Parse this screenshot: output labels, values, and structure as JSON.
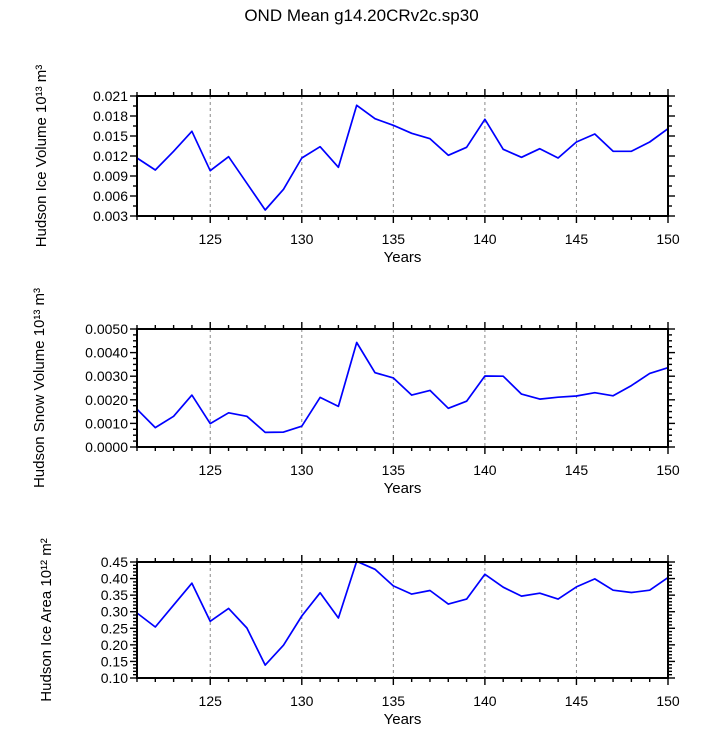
{
  "title": "OND Mean g14.20CRv2c.sp30",
  "colors": {
    "line": "#0000ff",
    "grid": "#8a8a8a",
    "axis": "#000000",
    "text": "#000000"
  },
  "x_axis": {
    "label": "Years",
    "tick_values": [
      125,
      130,
      135,
      140,
      145,
      150
    ],
    "tick_labels": [
      "125",
      "130",
      "135",
      "140",
      "145",
      "150"
    ],
    "minor_step": 1,
    "grid_values": [
      125,
      130,
      135,
      140,
      145
    ]
  },
  "chart_data": [
    {
      "type": "line",
      "id": "hudson-ice-volume",
      "ylabel": "Hudson Ice Volume 10¹³ m³",
      "xlabel": "Years",
      "xlim": [
        121,
        150
      ],
      "ylim": [
        0.003,
        0.021
      ],
      "ytick_values": [
        0.003,
        0.006,
        0.009,
        0.012,
        0.015,
        0.018,
        0.021
      ],
      "ytick_labels": [
        "0.003",
        "0.006",
        "0.009",
        "0.012",
        "0.015",
        "0.018",
        "0.021"
      ],
      "y_minor_step": 0.0015,
      "grid": "vertical-dashed",
      "x": [
        121,
        122,
        123,
        124,
        125,
        126,
        127,
        128,
        129,
        130,
        131,
        132,
        133,
        134,
        135,
        136,
        137,
        138,
        139,
        140,
        141,
        142,
        143,
        144,
        145,
        146,
        147,
        148,
        149,
        150
      ],
      "values": [
        0.0117,
        0.0099,
        0.0127,
        0.0157,
        0.0098,
        0.0119,
        0.0079,
        0.0039,
        0.007,
        0.0117,
        0.0134,
        0.0103,
        0.0196,
        0.0176,
        0.0166,
        0.0154,
        0.0146,
        0.0121,
        0.0133,
        0.0175,
        0.013,
        0.0118,
        0.0131,
        0.0117,
        0.0141,
        0.0153,
        0.0127,
        0.0127,
        0.0141,
        0.0161
      ]
    },
    {
      "type": "line",
      "id": "hudson-snow-volume",
      "ylabel": "Hudson Snow Volume 10¹³ m³",
      "xlabel": "Years",
      "xlim": [
        121,
        150
      ],
      "ylim": [
        0.0,
        0.005
      ],
      "ytick_values": [
        0.0,
        0.001,
        0.002,
        0.003,
        0.004,
        0.005
      ],
      "ytick_labels": [
        "0.0000",
        "0.0010",
        "0.0020",
        "0.0030",
        "0.0040",
        "0.0050"
      ],
      "y_minor_step": 0.00025,
      "grid": "vertical-dashed",
      "x": [
        121,
        122,
        123,
        124,
        125,
        126,
        127,
        128,
        129,
        130,
        131,
        132,
        133,
        134,
        135,
        136,
        137,
        138,
        139,
        140,
        141,
        142,
        143,
        144,
        145,
        146,
        147,
        148,
        149,
        150
      ],
      "values": [
        0.0016,
        0.00082,
        0.0013,
        0.0022,
        0.00099,
        0.00145,
        0.0013,
        0.00062,
        0.00063,
        0.00088,
        0.0021,
        0.00172,
        0.00443,
        0.00315,
        0.00293,
        0.0022,
        0.0024,
        0.00164,
        0.00194,
        0.00301,
        0.003,
        0.00224,
        0.00203,
        0.00211,
        0.00216,
        0.0023,
        0.00217,
        0.0026,
        0.00312,
        0.00336
      ]
    },
    {
      "type": "line",
      "id": "hudson-ice-area",
      "ylabel": "Hudson Ice Area 10¹² m²",
      "xlabel": "Years",
      "xlim": [
        121,
        150
      ],
      "ylim": [
        0.1,
        0.45
      ],
      "ytick_values": [
        0.1,
        0.15,
        0.2,
        0.25,
        0.3,
        0.35,
        0.4,
        0.45
      ],
      "ytick_labels": [
        "0.10",
        "0.15",
        "0.20",
        "0.25",
        "0.30",
        "0.35",
        "0.40",
        "0.45"
      ],
      "y_minor_step": 0.01,
      "grid": "vertical-dashed",
      "x": [
        121,
        122,
        123,
        124,
        125,
        126,
        127,
        128,
        129,
        130,
        131,
        132,
        133,
        134,
        135,
        136,
        137,
        138,
        139,
        140,
        141,
        142,
        143,
        144,
        145,
        146,
        147,
        148,
        149,
        150
      ],
      "values": [
        0.296,
        0.254,
        0.32,
        0.386,
        0.271,
        0.31,
        0.251,
        0.139,
        0.199,
        0.287,
        0.357,
        0.281,
        0.452,
        0.428,
        0.378,
        0.353,
        0.364,
        0.323,
        0.338,
        0.413,
        0.374,
        0.347,
        0.356,
        0.338,
        0.375,
        0.399,
        0.365,
        0.358,
        0.365,
        0.403
      ]
    }
  ]
}
